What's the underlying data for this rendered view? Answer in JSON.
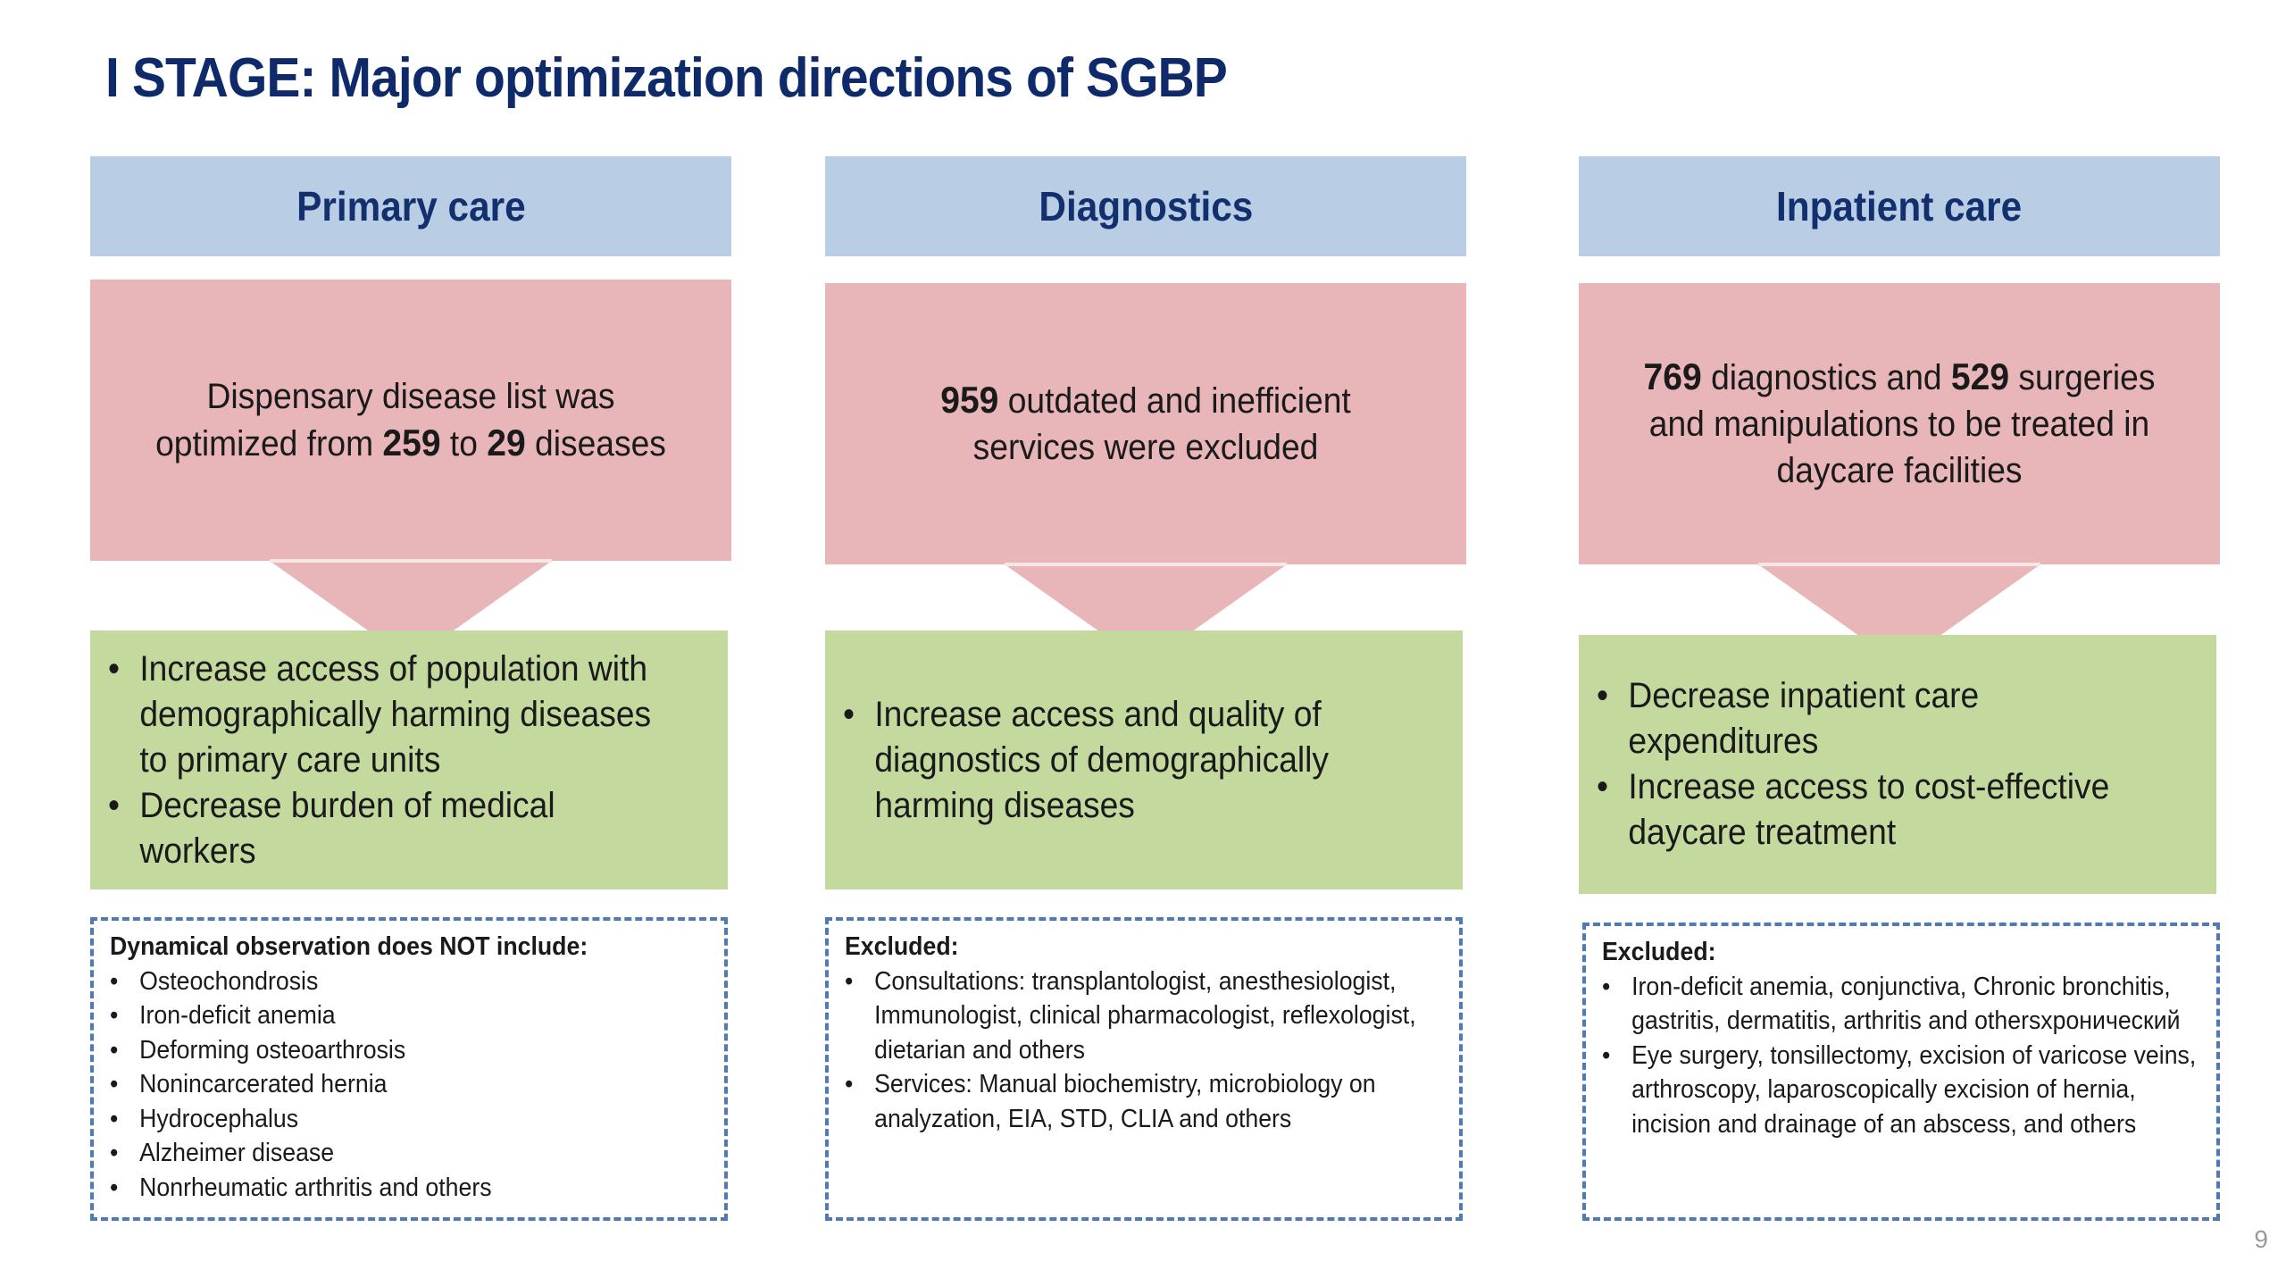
{
  "slide": {
    "title": "I STAGE: Major optimization directions of SGBP",
    "page_number": "9"
  },
  "columns": [
    {
      "header": "Primary care",
      "pink": {
        "parts": [
          {
            "text": "Dispensary disease list was optimized from  ",
            "bold": false
          },
          {
            "text": "259",
            "bold": true
          },
          {
            "text": " to ",
            "bold": false
          },
          {
            "text": "29",
            "bold": true
          },
          {
            "text": "  diseases",
            "bold": false
          }
        ]
      },
      "bullets": [
        "Increase access of population with demographically harming diseases to primary care units",
        "Decrease burden of medical workers"
      ],
      "excluded": {
        "title": "Dynamical observation does NOT include:",
        "items": [
          "Osteochondrosis",
          "Iron-deficit anemia",
          "Deforming osteoarthrosis",
          "Nonincarcerated hernia",
          "Hydrocephalus",
          "Alzheimer disease",
          "Nonrheumatic arthritis and others"
        ]
      }
    },
    {
      "header": "Diagnostics",
      "pink": {
        "parts": [
          {
            "text": "959",
            "bold": true
          },
          {
            "text": " outdated and inefficient services were excluded",
            "bold": false
          }
        ]
      },
      "bullets": [
        "Increase access and quality of diagnostics of demographically harming diseases"
      ],
      "excluded": {
        "title": "Excluded:",
        "items": [
          "Consultations: transplantologist, anesthesiologist, Immunologist, clinical pharmacologist, reflexologist, dietarian and others",
          "Services: Manual biochemistry, microbiology on analyzation, EIA, STD, CLIA and others"
        ]
      }
    },
    {
      "header": "Inpatient care",
      "pink": {
        "parts": [
          {
            "text": "769",
            "bold": true
          },
          {
            "text": " diagnostics and  ",
            "bold": false
          },
          {
            "text": "529",
            "bold": true
          },
          {
            "text": " surgeries and manipulations to be treated in daycare facilities",
            "bold": false
          }
        ]
      },
      "bullets": [
        "Decrease inpatient care expenditures",
        "Increase access to cost-effective daycare treatment"
      ],
      "excluded": {
        "title": "Excluded:",
        "items": [
          "Iron-deficit anemia, conjunctiva, Chronic bronchitis, gastritis, dermatitis, arthritis and othersхронический",
          "Eye surgery, tonsillectomy, excision of varicose veins, arthroscopy, laparoscopically excision of hernia, incision and drainage of an abscess, and others"
        ]
      }
    }
  ],
  "colors": {
    "title": "#0f2a6b",
    "header_bg": "#b9cde4",
    "pink_bg": "#e8b6b8",
    "green_bg": "#c4d99e",
    "dashed_border": "#4f7ab8"
  }
}
